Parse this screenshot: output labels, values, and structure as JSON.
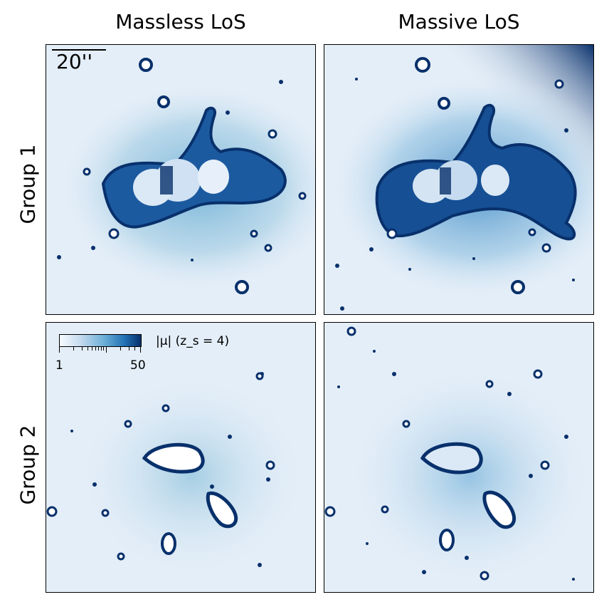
{
  "columns": [
    "Massless LoS",
    "Massive LoS"
  ],
  "rows": [
    "Group 1",
    "Group 2"
  ],
  "scale_bar": {
    "label": "20''"
  },
  "colorbar": {
    "label": "|μ| (z_s = 4)",
    "min_label": "1",
    "max_label": "50",
    "colors": [
      "#f7fbff",
      "#c6dbef",
      "#6baed6",
      "#2171b5",
      "#08306b"
    ]
  }
}
